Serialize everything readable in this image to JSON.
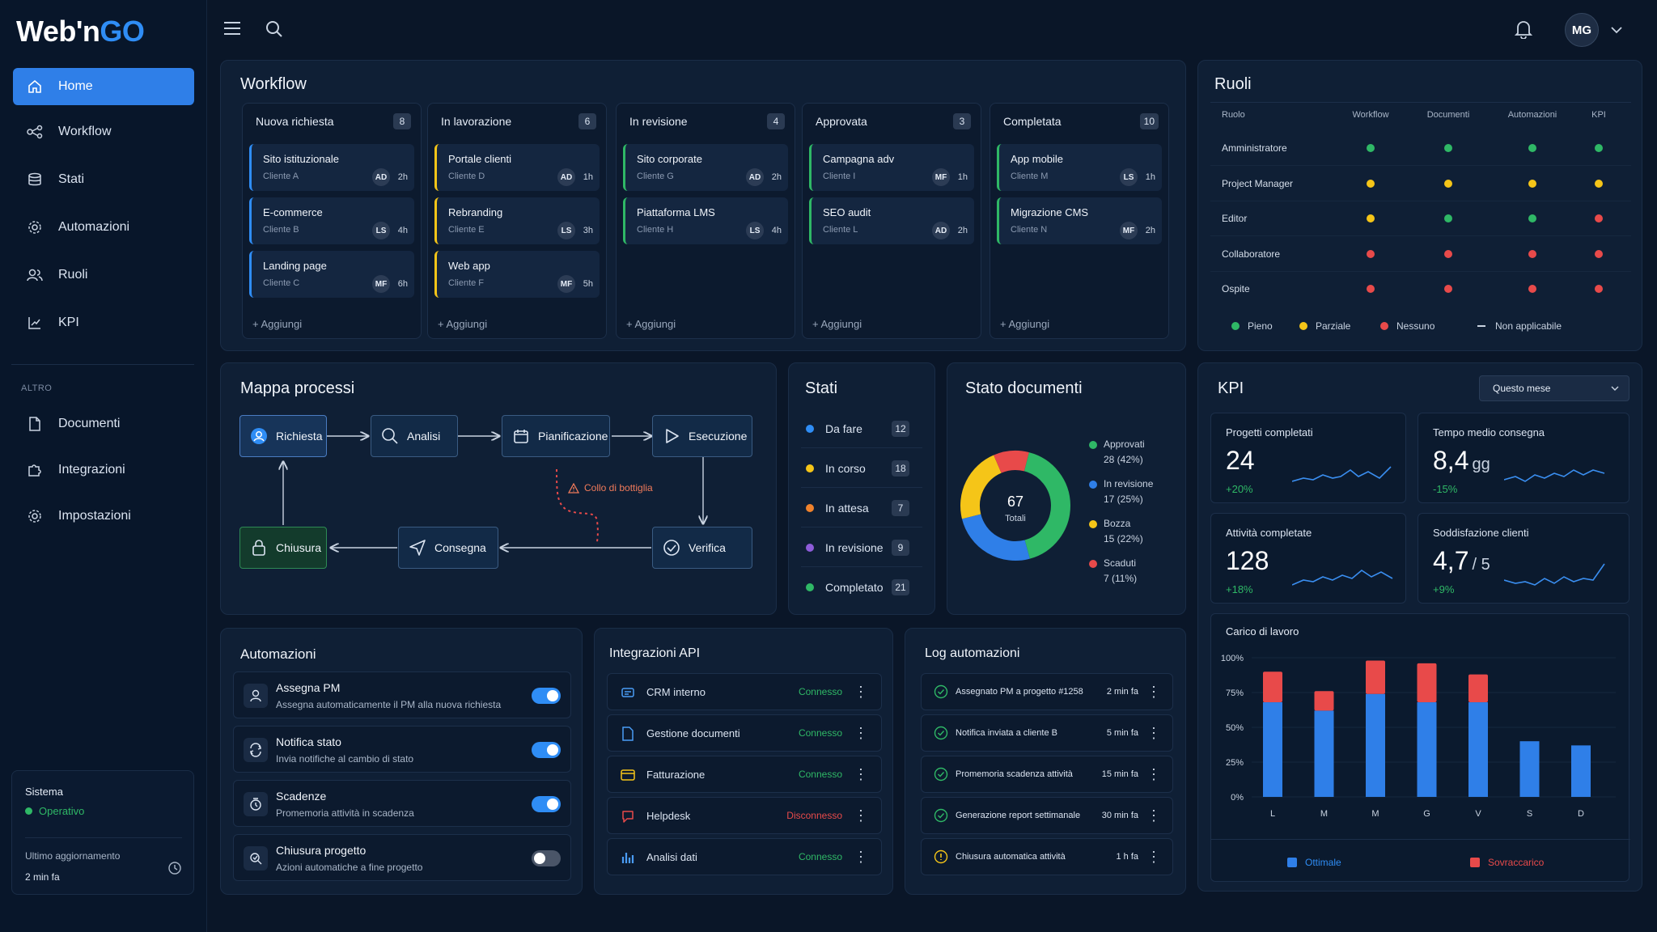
{
  "brand": {
    "name_a": "Web'n",
    "name_b": "GO"
  },
  "nav": [
    {
      "label": "Home",
      "icon": "home-icon",
      "active": true
    },
    {
      "label": "Workflow",
      "icon": "workflow-icon"
    },
    {
      "label": "Stati",
      "icon": "layers-icon"
    },
    {
      "label": "Automazioni",
      "icon": "gear-icon"
    },
    {
      "label": "Ruoli",
      "icon": "users-icon"
    },
    {
      "label": "KPI",
      "icon": "chart-icon"
    }
  ],
  "nav_section_label": "ALTRO",
  "nav_other": [
    {
      "label": "Documenti",
      "icon": "document-icon"
    },
    {
      "label": "Integrazioni",
      "icon": "puzzle-icon"
    },
    {
      "label": "Impostazioni",
      "icon": "settings-icon"
    }
  ],
  "system": {
    "title": "Sistema",
    "status": "Operativo",
    "update_label": "Ultimo aggiornamento",
    "update_value": "2 min fa"
  },
  "header": {
    "avatar": "MG"
  },
  "workflow": {
    "title": "Workflow",
    "add_label": "+ Aggiungi",
    "columns": [
      {
        "name": "Nuova richiesta",
        "count": "8",
        "color": "#2f8df5",
        "cards": [
          {
            "title": "Sito istituzionale",
            "client": "Cliente A",
            "avatar": "AD",
            "time": "2h"
          },
          {
            "title": "E-commerce",
            "client": "Cliente B",
            "avatar": "LS",
            "time": "4h"
          },
          {
            "title": "Landing page",
            "client": "Cliente C",
            "avatar": "MF",
            "time": "6h"
          }
        ]
      },
      {
        "name": "In lavorazione",
        "count": "6",
        "color": "#f5c518",
        "cards": [
          {
            "title": "Portale clienti",
            "client": "Cliente D",
            "avatar": "AD",
            "time": "1h"
          },
          {
            "title": "Rebranding",
            "client": "Cliente E",
            "avatar": "LS",
            "time": "3h"
          },
          {
            "title": "Web app",
            "client": "Cliente F",
            "avatar": "MF",
            "time": "5h"
          }
        ]
      },
      {
        "name": "In revisione",
        "count": "4",
        "color": "#2fb866",
        "cards": [
          {
            "title": "Sito corporate",
            "client": "Cliente G",
            "avatar": "AD",
            "time": "2h"
          },
          {
            "title": "Piattaforma LMS",
            "client": "Cliente H",
            "avatar": "LS",
            "time": "4h"
          }
        ]
      },
      {
        "name": "Approvata",
        "count": "3",
        "color": "#2fb866",
        "cards": [
          {
            "title": "Campagna adv",
            "client": "Cliente I",
            "avatar": "MF",
            "time": "1h"
          },
          {
            "title": "SEO audit",
            "client": "Cliente L",
            "avatar": "AD",
            "time": "2h"
          }
        ]
      },
      {
        "name": "Completata",
        "count": "10",
        "color": "#2fb866",
        "cards": [
          {
            "title": "App mobile",
            "client": "Cliente M",
            "avatar": "LS",
            "time": "1h"
          },
          {
            "title": "Migrazione CMS",
            "client": "Cliente N",
            "avatar": "MF",
            "time": "2h"
          }
        ]
      }
    ]
  },
  "roles": {
    "title": "Ruoli",
    "headers": [
      "Ruolo",
      "Workflow",
      "Documenti",
      "Automazioni",
      "KPI"
    ],
    "rows": [
      {
        "name": "Amministratore",
        "values": [
          "#2fb866",
          "#2fb866",
          "#2fb866",
          "#2fb866"
        ]
      },
      {
        "name": "Project Manager",
        "values": [
          "#f5c518",
          "#f5c518",
          "#f5c518",
          "#f5c518"
        ]
      },
      {
        "name": "Editor",
        "values": [
          "#f5c518",
          "#2fb866",
          "#2fb866",
          "#e84a4a"
        ]
      },
      {
        "name": "Collaboratore",
        "values": [
          "#e84a4a",
          "#e84a4a",
          "#e84a4a",
          "#e84a4a"
        ]
      },
      {
        "name": "Ospite",
        "values": [
          "#e84a4a",
          "#e84a4a",
          "#e84a4a",
          "#e84a4a"
        ]
      }
    ],
    "legend": [
      "Pieno",
      "Parziale",
      "Nessuno",
      "Non applicabile"
    ]
  },
  "process": {
    "title": "Mappa processi",
    "nodes": [
      "Richiesta",
      "Analisi",
      "Pianificazione",
      "Esecuzione",
      "Verifica",
      "Consegna",
      "Chiusura"
    ],
    "bottleneck": "Collo di bottiglia"
  },
  "states": {
    "title": "Stati",
    "items": [
      {
        "label": "Da fare",
        "count": "12",
        "color": "#2f8df5"
      },
      {
        "label": "In corso",
        "count": "18",
        "color": "#f5c518"
      },
      {
        "label": "In attesa",
        "count": "7",
        "color": "#f0822c"
      },
      {
        "label": "In revisione",
        "count": "9",
        "color": "#8e5cd9"
      },
      {
        "label": "Completato",
        "count": "21",
        "color": "#2fb866"
      }
    ]
  },
  "docs": {
    "title": "Stato documenti",
    "total": "67",
    "total_label": "Totali",
    "legend": [
      {
        "label": "Approvati",
        "value": "28 (42%)",
        "color": "#2fb866"
      },
      {
        "label": "In revisione",
        "value": "17 (25%)",
        "color": "#2f7fe8"
      },
      {
        "label": "Bozza",
        "value": "15 (22%)",
        "color": "#f5c518"
      },
      {
        "label": "Scaduti",
        "value": "7 (11%)",
        "color": "#e84a4a"
      }
    ]
  },
  "kpi": {
    "title": "KPI",
    "period": "Questo mese",
    "cards": [
      {
        "label": "Progetti completati",
        "value": "24",
        "unit": "",
        "delta": "+20%",
        "delta_color": "#2fb866"
      },
      {
        "label": "Tempo medio consegna",
        "value": "8,4",
        "unit": "gg",
        "delta": "-15%",
        "delta_color": "#2fb866"
      },
      {
        "label": "Attività completate",
        "value": "128",
        "unit": "",
        "delta": "+18%",
        "delta_color": "#2fb866"
      },
      {
        "label": "Soddisfazione clienti",
        "value": "4,7",
        "unit": "/ 5",
        "delta": "+9%",
        "delta_color": "#2fb866"
      }
    ],
    "workload": {
      "title": "Carico di lavoro",
      "legend_a": "Ottimale",
      "legend_b": "Sovraccarico"
    }
  },
  "chart_data": {
    "type": "bar",
    "title": "Carico di lavoro",
    "categories": [
      "L",
      "M",
      "M",
      "G",
      "V",
      "S",
      "D"
    ],
    "yticks": [
      "100%",
      "75%",
      "50%",
      "25%",
      "0%"
    ],
    "ylim": [
      0,
      100
    ],
    "series": [
      {
        "name": "Ottimale",
        "color": "#2f7fe8",
        "values": [
          68,
          62,
          74,
          68,
          68,
          40,
          37
        ]
      },
      {
        "name": "Sovraccarico",
        "color": "#e84a4a",
        "values": [
          22,
          14,
          24,
          28,
          20,
          0,
          0
        ]
      }
    ]
  },
  "automations": {
    "title": "Automazioni",
    "items": [
      {
        "title": "Assegna PM",
        "desc": "Assegna automaticamente il PM alla nuova richiesta",
        "on": true
      },
      {
        "title": "Notifica stato",
        "desc": "Invia notifiche al cambio di stato",
        "on": true
      },
      {
        "title": "Scadenze",
        "desc": "Promemoria attività in scadenza",
        "on": true
      },
      {
        "title": "Chiusura progetto",
        "desc": "Azioni automatiche a fine progetto",
        "on": false
      }
    ]
  },
  "api": {
    "title": "Integrazioni API",
    "items": [
      {
        "name": "CRM interno",
        "status": "Connesso",
        "color": "#2fb866"
      },
      {
        "name": "Gestione documenti",
        "status": "Connesso",
        "color": "#2fb866"
      },
      {
        "name": "Fatturazione",
        "status": "Connesso",
        "color": "#2fb866"
      },
      {
        "name": "Helpdesk",
        "status": "Disconnesso",
        "color": "#e84a4a"
      },
      {
        "name": "Analisi dati",
        "status": "Connesso",
        "color": "#2fb866"
      }
    ]
  },
  "logs": {
    "title": "Log automazioni",
    "items": [
      {
        "text": "Assegnato PM a progetto #1258",
        "time": "2 min fa",
        "ok": true
      },
      {
        "text": "Notifica inviata a cliente B",
        "time": "5 min fa",
        "ok": true
      },
      {
        "text": "Promemoria scadenza attività",
        "time": "15 min fa",
        "ok": true
      },
      {
        "text": "Generazione report settimanale",
        "time": "30 min fa",
        "ok": true
      },
      {
        "text": "Chiusura automatica attività",
        "time": "1 h fa",
        "ok": false
      }
    ]
  }
}
